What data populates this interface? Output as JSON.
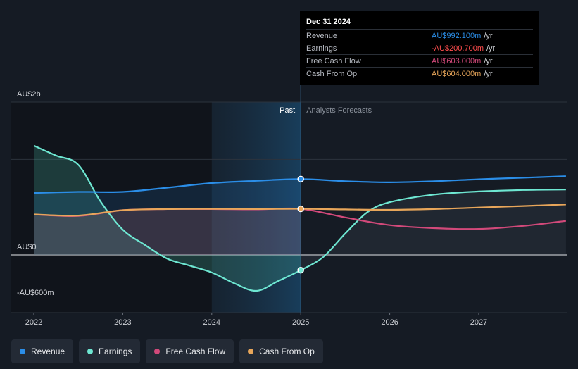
{
  "chart_data": {
    "type": "line",
    "x_ticks": [
      "2022",
      "2023",
      "2024",
      "2025",
      "2026",
      "2027"
    ],
    "y_labels": [
      {
        "value": 2000,
        "label": "AU$2b"
      },
      {
        "value": 0,
        "label": "AU$0"
      },
      {
        "value": -600,
        "label": "-AU$600m"
      }
    ],
    "ylim": [
      -600,
      2000
    ],
    "xlim": [
      2021.78,
      2027.98
    ],
    "divider_x": 2025.0,
    "past_region_start": 2024.0,
    "past_label": "Past",
    "forecast_label": "Analysts Forecasts",
    "colors": {
      "revenue": "#2b8ee8",
      "earnings": "#6ee7d2",
      "free_cash_flow": "#d2497a",
      "cash_from_op": "#e8a65a"
    },
    "series": [
      {
        "key": "revenue",
        "name": "Revenue",
        "x": [
          2022.0,
          2022.5,
          2023.0,
          2023.5,
          2024.0,
          2024.5,
          2025.0,
          2025.5,
          2026.0,
          2026.5,
          2027.0,
          2027.5,
          2028.0
        ],
        "values": [
          810,
          825,
          825,
          880,
          940,
          970,
          992,
          965,
          950,
          965,
          990,
          1010,
          1030
        ]
      },
      {
        "key": "earnings",
        "name": "Earnings",
        "x": [
          2022.0,
          2022.25,
          2022.5,
          2022.75,
          2023.0,
          2023.25,
          2023.5,
          2023.75,
          2024.0,
          2024.25,
          2024.5,
          2024.75,
          2025.0,
          2025.25,
          2025.5,
          2025.75,
          2026.0,
          2026.5,
          2027.0,
          2027.5,
          2028.0
        ],
        "values": [
          1430,
          1300,
          1180,
          700,
          330,
          130,
          -50,
          -140,
          -230,
          -370,
          -470,
          -340,
          -200,
          -30,
          280,
          560,
          690,
          790,
          830,
          850,
          855
        ]
      },
      {
        "key": "free_cash_flow",
        "name": "Free Cash Flow",
        "x": [
          2022.0,
          2022.5,
          2023.0,
          2023.5,
          2024.0,
          2024.5,
          2025.0,
          2025.5,
          2026.0,
          2026.5,
          2027.0,
          2027.5,
          2028.0
        ],
        "values": [
          530,
          510,
          585,
          600,
          600,
          595,
          603,
          490,
          390,
          350,
          340,
          380,
          445
        ]
      },
      {
        "key": "cash_from_op",
        "name": "Cash From Op",
        "x": [
          2022.0,
          2022.5,
          2023.0,
          2023.5,
          2024.0,
          2024.5,
          2025.0,
          2025.5,
          2026.0,
          2026.5,
          2027.0,
          2027.5,
          2028.0
        ],
        "values": [
          530,
          515,
          585,
          600,
          602,
          600,
          604,
          595,
          590,
          600,
          620,
          640,
          660
        ]
      }
    ],
    "highlight": {
      "x": 2025.0,
      "date": "Dec 31 2024",
      "rows": [
        {
          "key": "revenue",
          "label": "Revenue",
          "value": "AU$992.100m",
          "unit": "/yr",
          "color": "#2b8ee8"
        },
        {
          "key": "earnings",
          "label": "Earnings",
          "value": "-AU$200.700m",
          "unit": "/yr",
          "color": "#ff4d4d"
        },
        {
          "key": "free_cash_flow",
          "label": "Free Cash Flow",
          "value": "AU$603.000m",
          "unit": "/yr",
          "color": "#d2497a"
        },
        {
          "key": "cash_from_op",
          "label": "Cash From Op",
          "value": "AU$604.000m",
          "unit": "/yr",
          "color": "#e8a65a"
        }
      ]
    }
  },
  "legend": [
    {
      "key": "revenue",
      "label": "Revenue",
      "color": "#2b8ee8"
    },
    {
      "key": "earnings",
      "label": "Earnings",
      "color": "#6ee7d2"
    },
    {
      "key": "free_cash_flow",
      "label": "Free Cash Flow",
      "color": "#d2497a"
    },
    {
      "key": "cash_from_op",
      "label": "Cash From Op",
      "color": "#e8a65a"
    }
  ]
}
